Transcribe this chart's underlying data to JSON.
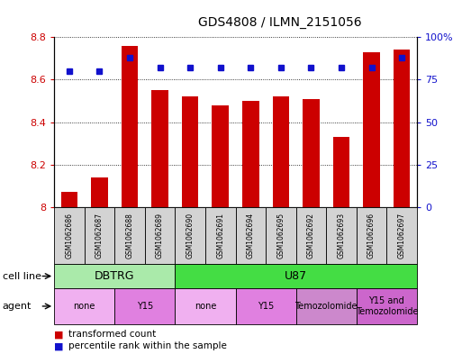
{
  "title": "GDS4808 / ILMN_2151056",
  "samples": [
    "GSM1062686",
    "GSM1062687",
    "GSM1062688",
    "GSM1062689",
    "GSM1062690",
    "GSM1062691",
    "GSM1062694",
    "GSM1062695",
    "GSM1062692",
    "GSM1062693",
    "GSM1062696",
    "GSM1062697"
  ],
  "red_values": [
    8.07,
    8.14,
    8.76,
    8.55,
    8.52,
    8.48,
    8.5,
    8.52,
    8.51,
    8.33,
    8.73,
    8.74
  ],
  "blue_values": [
    80,
    80,
    88,
    82,
    82,
    82,
    82,
    82,
    82,
    82,
    82,
    88
  ],
  "ylim_left": [
    8.0,
    8.8
  ],
  "ylim_right": [
    0,
    100
  ],
  "yticks_left": [
    8.0,
    8.2,
    8.4,
    8.6,
    8.8
  ],
  "yticks_right": [
    0,
    25,
    50,
    75,
    100
  ],
  "ytick_labels_left": [
    "8",
    "8.2",
    "8.4",
    "8.6",
    "8.8"
  ],
  "ytick_labels_right": [
    "0",
    "25",
    "50",
    "75",
    "100%"
  ],
  "bar_color": "#cc0000",
  "dot_color": "#1111cc",
  "bar_base": 8.0,
  "cell_line_groups": [
    {
      "label": "DBTRG",
      "start": 0,
      "end": 3,
      "color": "#aaeaaa"
    },
    {
      "label": "U87",
      "start": 4,
      "end": 11,
      "color": "#44dd44"
    }
  ],
  "agent_groups": [
    {
      "label": "none",
      "start": 0,
      "end": 1,
      "color": "#f0b0f0"
    },
    {
      "label": "Y15",
      "start": 2,
      "end": 3,
      "color": "#e080e0"
    },
    {
      "label": "none",
      "start": 4,
      "end": 5,
      "color": "#f0b0f0"
    },
    {
      "label": "Y15",
      "start": 6,
      "end": 7,
      "color": "#e080e0"
    },
    {
      "label": "Temozolomide",
      "start": 8,
      "end": 9,
      "color": "#cc88cc"
    },
    {
      "label": "Y15 and\nTemozolomide",
      "start": 10,
      "end": 11,
      "color": "#cc66cc"
    }
  ],
  "legend_red": "transformed count",
  "legend_blue": "percentile rank within the sample",
  "cell_line_label": "cell line",
  "agent_label": "agent",
  "background_color": "#ffffff",
  "tick_color_left": "#cc0000",
  "tick_color_right": "#1111cc",
  "sample_box_color": "#d3d3d3"
}
